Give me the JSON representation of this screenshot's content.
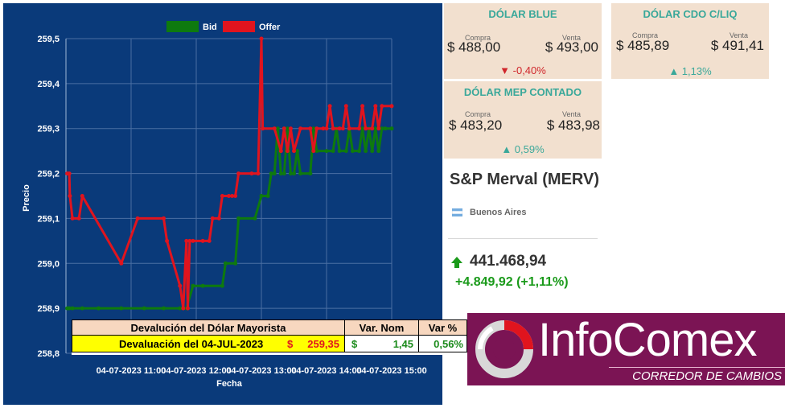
{
  "chart_data": {
    "type": "line",
    "xlabel": "Fecha",
    "ylabel": "Precio",
    "ylim": [
      258.8,
      259.5
    ],
    "yticks": [
      "259,5",
      "259,4",
      "259,3",
      "259,2",
      "259,1",
      "259,0",
      "258,9",
      "258,8"
    ],
    "xticks": [
      "04-07-2023 11:00",
      "04-07-2023 12:00",
      "04-07-2023 13:00",
      "04-07-2023 14:00",
      "04-07-2023 15:00"
    ],
    "xdomain_hours": [
      10.0,
      15.0
    ],
    "grid": true,
    "legend_position": "top",
    "series": [
      {
        "name": "Bid",
        "color": "#0e7a0e",
        "points": [
          [
            10.02,
            258.9
          ],
          [
            10.05,
            258.9
          ],
          [
            10.1,
            258.9
          ],
          [
            10.25,
            258.9
          ],
          [
            10.5,
            258.9
          ],
          [
            10.85,
            258.9
          ],
          [
            11.2,
            258.9
          ],
          [
            11.5,
            258.9
          ],
          [
            11.75,
            258.9
          ],
          [
            11.85,
            258.9
          ],
          [
            11.95,
            258.95
          ],
          [
            12.1,
            258.95
          ],
          [
            12.4,
            258.95
          ],
          [
            12.45,
            259.0
          ],
          [
            12.6,
            259.0
          ],
          [
            12.65,
            259.1
          ],
          [
            12.9,
            259.1
          ],
          [
            13.0,
            259.15
          ],
          [
            13.1,
            259.15
          ],
          [
            13.15,
            259.2
          ],
          [
            13.2,
            259.2
          ],
          [
            13.25,
            259.3
          ],
          [
            13.3,
            259.2
          ],
          [
            13.35,
            259.2
          ],
          [
            13.4,
            259.3
          ],
          [
            13.45,
            259.2
          ],
          [
            13.5,
            259.2
          ],
          [
            13.55,
            259.25
          ],
          [
            13.6,
            259.2
          ],
          [
            13.75,
            259.2
          ],
          [
            13.8,
            259.3
          ],
          [
            13.85,
            259.25
          ],
          [
            14.0,
            259.25
          ],
          [
            14.1,
            259.25
          ],
          [
            14.15,
            259.3
          ],
          [
            14.2,
            259.25
          ],
          [
            14.3,
            259.25
          ],
          [
            14.35,
            259.3
          ],
          [
            14.4,
            259.25
          ],
          [
            14.5,
            259.25
          ],
          [
            14.55,
            259.3
          ],
          [
            14.6,
            259.25
          ],
          [
            14.65,
            259.3
          ],
          [
            14.7,
            259.25
          ],
          [
            14.75,
            259.3
          ],
          [
            14.8,
            259.25
          ],
          [
            14.85,
            259.3
          ],
          [
            14.9,
            259.3
          ],
          [
            15.0,
            259.3
          ]
        ]
      },
      {
        "name": "Offer",
        "color": "#e0141e",
        "points": [
          [
            10.02,
            259.2
          ],
          [
            10.05,
            259.2
          ],
          [
            10.06,
            259.15
          ],
          [
            10.1,
            259.1
          ],
          [
            10.2,
            259.1
          ],
          [
            10.25,
            259.15
          ],
          [
            10.85,
            259.0
          ],
          [
            11.1,
            259.1
          ],
          [
            11.5,
            259.1
          ],
          [
            11.55,
            259.05
          ],
          [
            11.75,
            258.95
          ],
          [
            11.8,
            258.9
          ],
          [
            11.85,
            259.05
          ],
          [
            11.87,
            258.9
          ],
          [
            11.9,
            259.05
          ],
          [
            11.95,
            259.05
          ],
          [
            12.1,
            259.05
          ],
          [
            12.2,
            259.05
          ],
          [
            12.25,
            259.1
          ],
          [
            12.35,
            259.1
          ],
          [
            12.4,
            259.15
          ],
          [
            12.5,
            259.15
          ],
          [
            12.55,
            259.15
          ],
          [
            12.6,
            259.15
          ],
          [
            12.65,
            259.2
          ],
          [
            12.85,
            259.2
          ],
          [
            12.95,
            259.2
          ],
          [
            13.0,
            259.5
          ],
          [
            13.02,
            259.3
          ],
          [
            13.2,
            259.3
          ],
          [
            13.3,
            259.25
          ],
          [
            13.35,
            259.3
          ],
          [
            13.4,
            259.25
          ],
          [
            13.45,
            259.3
          ],
          [
            13.5,
            259.25
          ],
          [
            13.6,
            259.3
          ],
          [
            13.75,
            259.3
          ],
          [
            13.8,
            259.25
          ],
          [
            13.85,
            259.3
          ],
          [
            13.95,
            259.3
          ],
          [
            14.0,
            259.3
          ],
          [
            14.05,
            259.35
          ],
          [
            14.1,
            259.3
          ],
          [
            14.2,
            259.3
          ],
          [
            14.25,
            259.3
          ],
          [
            14.3,
            259.35
          ],
          [
            14.35,
            259.3
          ],
          [
            14.5,
            259.3
          ],
          [
            14.55,
            259.35
          ],
          [
            14.6,
            259.3
          ],
          [
            14.7,
            259.3
          ],
          [
            14.75,
            259.35
          ],
          [
            14.8,
            259.3
          ],
          [
            14.85,
            259.35
          ],
          [
            15.0,
            259.35
          ]
        ]
      }
    ]
  },
  "deval_table": {
    "header": {
      "title": "Devalución del Dólar Mayorista",
      "var_nom": "Var. Nom",
      "var_pct": "Var %"
    },
    "row": {
      "label": "Devaluación del 04-JUL-2023",
      "currency": "$",
      "price": "259,35",
      "nom_currency": "$",
      "nom_value": "1,45",
      "pct": "0,56%"
    }
  },
  "cards": {
    "blue": {
      "title": "DÓLAR BLUE",
      "compra_label": "Compra",
      "venta_label": "Venta",
      "compra": "$ 488,00",
      "venta": "$ 493,00",
      "change": "▼ -0,40%"
    },
    "cdo": {
      "title": "DÓLAR CDO C/LIQ",
      "compra_label": "Compra",
      "venta_label": "Venta",
      "compra": "$ 485,89",
      "venta": "$ 491,41",
      "change": "▲ 1,13%"
    },
    "mep": {
      "title": "DÓLAR MEP CONTADO",
      "compra_label": "Compra",
      "venta_label": "Venta",
      "compra": "$ 483,20",
      "venta": "$ 483,98",
      "change": "▲ 0,59%"
    }
  },
  "merval": {
    "title": "S&P Merval (MERV)",
    "city": "Buenos Aires",
    "value": "441.468,94",
    "change": "+4.849,92  (+1,11%)"
  },
  "logo": {
    "brand": "InfoComex",
    "tagline": "CORREDOR DE CAMBIOS"
  }
}
